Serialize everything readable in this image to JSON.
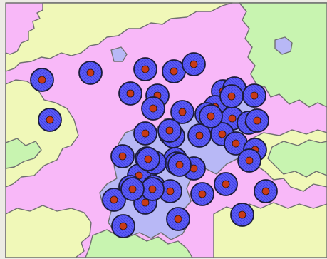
{
  "map": {
    "colors": {
      "background": "#ecebe4",
      "pink": "#f8b8f8",
      "yellow": "#f0f8b8",
      "green": "#c8f4b0",
      "blue": "#b8b8f6",
      "boundary": "#6f6f6f",
      "marker_fill": "#5b5bf5",
      "marker_outline": "#1c1c3a",
      "marker_center": "#c83a16"
    },
    "regions": [
      {
        "name": "pink-region",
        "color": "pink"
      },
      {
        "name": "yellow-region",
        "color": "yellow"
      },
      {
        "name": "green-region",
        "color": "green"
      },
      {
        "name": "blue-region",
        "color": "blue"
      }
    ],
    "marker_count": 53
  }
}
